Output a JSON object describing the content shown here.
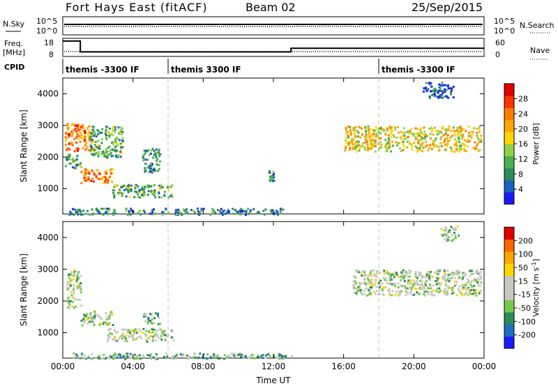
{
  "header": {
    "station": "Fort Hays East (fitACF)",
    "beam": "Beam 02",
    "date": "25/Sep/2015"
  },
  "status_panel": {
    "nsky_label": "N.Sky",
    "nsky_scale_top": "10^5",
    "nsky_scale_bottom": "10^0",
    "nsearch_label": "N.Search",
    "freq_label": "Freq.",
    "freq_unit": "[MHz]",
    "freq_ticks": [
      "18",
      "8"
    ],
    "nave_label": "Nave",
    "nave_ticks": [
      "60",
      "0"
    ],
    "cpid_label": "CPID",
    "cpid_segments": [
      {
        "start_h": 0,
        "end_h": 6,
        "label": "themis -3300 IF"
      },
      {
        "start_h": 6,
        "end_h": 18,
        "label": "themis 3300 IF"
      },
      {
        "start_h": 18,
        "end_h": 24,
        "label": "themis -3300 IF"
      }
    ],
    "freq_steps": [
      {
        "start_h": 0,
        "end_h": 1,
        "mhz": 16.5
      },
      {
        "start_h": 1,
        "end_h": 13,
        "mhz": 10.5
      },
      {
        "start_h": 13,
        "end_h": 24,
        "mhz": 12.5
      }
    ]
  },
  "chart_data": [
    {
      "type": "heatmap",
      "name": "power",
      "ylabel": "Slant Range [km]",
      "xlabel": "Time UT",
      "xlim": [
        0,
        24
      ],
      "ylim": [
        200,
        4500
      ],
      "x_ticks": [
        "00:00",
        "04:00",
        "08:00",
        "12:00",
        "16:00",
        "20:00",
        "00:00"
      ],
      "y_ticks": [
        1000,
        2000,
        3000,
        4000
      ],
      "colorbar": {
        "label": "Power [dB]",
        "ticks": [
          "4",
          "8",
          "12",
          "16",
          "20",
          "24",
          "28"
        ],
        "colors": [
          "#1a1aff",
          "#1f5fbf",
          "#2e8b57",
          "#4caf50",
          "#8fd24a",
          "#ffd700",
          "#ffa500",
          "#ff7a00",
          "#ff3300",
          "#e00000"
        ]
      },
      "patches": [
        {
          "t0": 0.1,
          "t1": 1.6,
          "r0": 2200,
          "r1": 3100,
          "level": 7
        },
        {
          "t0": 0.1,
          "t1": 1.0,
          "r0": 1650,
          "r1": 2100,
          "level": 3
        },
        {
          "t0": 1.0,
          "t1": 2.8,
          "r0": 1200,
          "r1": 1650,
          "level": 7
        },
        {
          "t0": 1.5,
          "t1": 3.4,
          "r0": 2000,
          "r1": 3000,
          "level": 3
        },
        {
          "t0": 2.8,
          "t1": 6.2,
          "r0": 750,
          "r1": 1150,
          "level": 3
        },
        {
          "t0": 4.5,
          "t1": 5.5,
          "r0": 1500,
          "r1": 2300,
          "level": 2
        },
        {
          "t0": 0.3,
          "t1": 12.5,
          "r0": 200,
          "r1": 400,
          "level": 2
        },
        {
          "t0": 11.7,
          "t1": 12.0,
          "r0": 1250,
          "r1": 1600,
          "level": 2
        },
        {
          "t0": 16.0,
          "t1": 23.8,
          "r0": 2200,
          "r1": 3000,
          "level": 5
        },
        {
          "t0": 20.5,
          "t1": 22.3,
          "r0": 3900,
          "r1": 4400,
          "level": 1
        }
      ]
    },
    {
      "type": "heatmap",
      "name": "velocity",
      "ylabel": "Slant Range [km]",
      "xlabel": "Time UT",
      "xlim": [
        0,
        24
      ],
      "ylim": [
        200,
        4500
      ],
      "x_ticks": [
        "00:00",
        "04:00",
        "08:00",
        "12:00",
        "16:00",
        "20:00",
        "00:00"
      ],
      "y_ticks": [
        1000,
        2000,
        3000,
        4000
      ],
      "colorbar": {
        "label": "Velocity [m s",
        "unit_sup": "-1",
        "ticks": [
          "200",
          "100",
          "50",
          "15",
          "-15",
          "-50",
          "-100",
          "-200"
        ],
        "colors": [
          "#1a1aff",
          "#1f6fbf",
          "#2e8b57",
          "#78c850",
          "#c8c8c0",
          "#c8c8c0",
          "#ffd700",
          "#ffa500",
          "#ff6600",
          "#e00000"
        ]
      },
      "patches": [
        {
          "t0": 0.2,
          "t1": 1.0,
          "r0": 1800,
          "r1": 3000,
          "level": 4
        },
        {
          "t0": 1.0,
          "t1": 2.8,
          "r0": 1250,
          "r1": 1700,
          "level": 4
        },
        {
          "t0": 2.5,
          "t1": 6.3,
          "r0": 750,
          "r1": 1150,
          "level": 4
        },
        {
          "t0": 4.5,
          "t1": 5.5,
          "r0": 1300,
          "r1": 1650,
          "level": 3
        },
        {
          "t0": 0.5,
          "t1": 13.0,
          "r0": 200,
          "r1": 380,
          "level": 3
        },
        {
          "t0": 16.5,
          "t1": 23.8,
          "r0": 2200,
          "r1": 3000,
          "level": 4
        },
        {
          "t0": 21.5,
          "t1": 22.5,
          "r0": 3900,
          "r1": 4400,
          "level": 4
        }
      ]
    }
  ],
  "colors": {
    "axis": "#000000",
    "divider": "#c0c0c0"
  }
}
